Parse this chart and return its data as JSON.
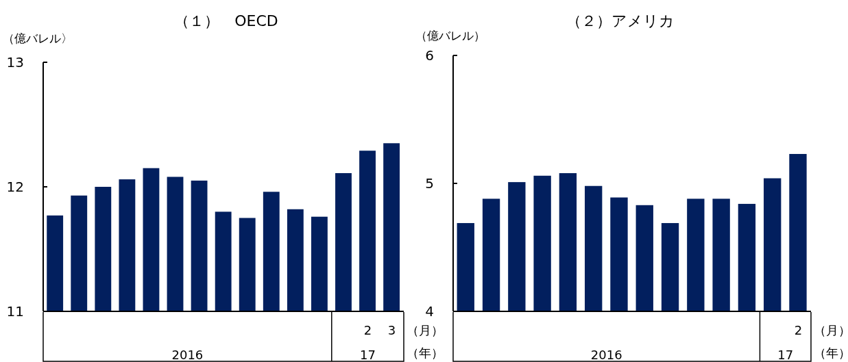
{
  "chart_data": [
    {
      "type": "bar",
      "title": "（１）　OECD",
      "ylabel": "（億バレル〉",
      "color": "#021f5e",
      "categories": [
        null,
        null,
        null,
        null,
        null,
        null,
        null,
        null,
        null,
        null,
        null,
        null,
        null,
        "2",
        "3"
      ],
      "values": [
        11.77,
        11.93,
        12.0,
        12.06,
        12.15,
        12.08,
        12.05,
        11.8,
        11.75,
        11.96,
        11.82,
        11.76,
        12.11,
        12.29,
        12.35
      ],
      "ylim": [
        11,
        13
      ],
      "yticks": [
        11,
        12,
        13
      ],
      "grid": false,
      "annotations": [
        "（月）",
        "（年）",
        "2016",
        "17"
      ]
    },
    {
      "type": "bar",
      "title": "（２）アメリカ",
      "ylabel": "（億バレル）",
      "color": "#021f5e",
      "categories": [
        null,
        null,
        null,
        null,
        null,
        null,
        null,
        null,
        null,
        null,
        null,
        null,
        null,
        "2"
      ],
      "values": [
        4.69,
        4.88,
        5.01,
        5.06,
        5.08,
        4.98,
        4.89,
        4.83,
        4.69,
        4.88,
        4.88,
        4.84,
        5.04,
        5.23
      ],
      "ylim": [
        4,
        6
      ],
      "yticks": [
        4,
        5,
        6
      ],
      "grid": false,
      "annotations": [
        "（月）",
        "（年）",
        "2016",
        "17"
      ]
    }
  ]
}
